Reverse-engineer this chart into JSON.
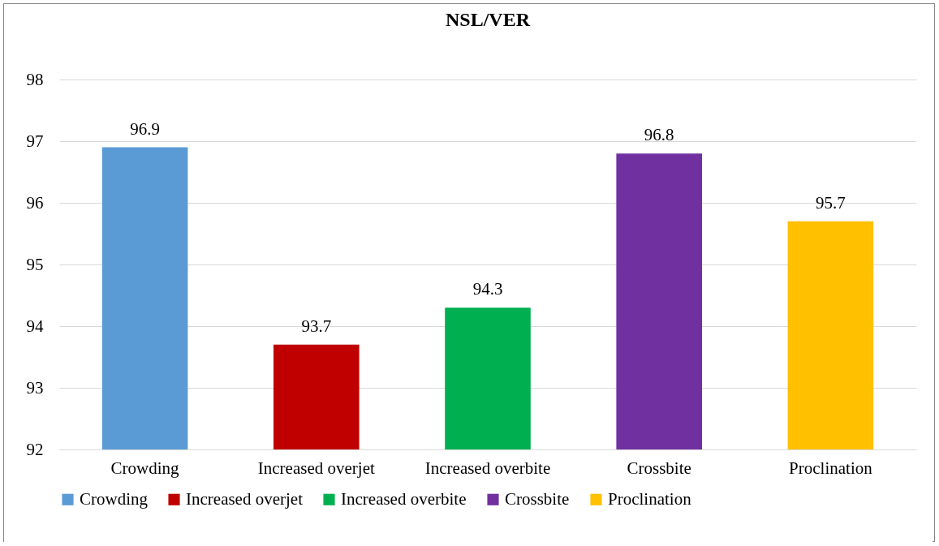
{
  "chart_data": {
    "type": "bar",
    "title": "NSL/VER",
    "categories": [
      "Crowding",
      "Increased overjet",
      "Increased overbite",
      "Crossbite",
      "Proclination"
    ],
    "series": [
      {
        "name": "Crowding",
        "color": "#5b9bd5",
        "values": [
          96.9,
          null,
          null,
          null,
          null
        ]
      },
      {
        "name": "Increased overjet",
        "color": "#c00000",
        "values": [
          null,
          93.7,
          null,
          null,
          null
        ]
      },
      {
        "name": "Increased overbite",
        "color": "#00b050",
        "values": [
          null,
          null,
          94.3,
          null,
          null
        ]
      },
      {
        "name": "Crossbite",
        "color": "#7030a0",
        "values": [
          null,
          null,
          null,
          96.8,
          null
        ]
      },
      {
        "name": "Proclination",
        "color": "#ffc000",
        "values": [
          null,
          null,
          null,
          null,
          95.7
        ]
      }
    ],
    "ylim": [
      92,
      98
    ],
    "yticks": [
      92,
      93,
      94,
      95,
      96,
      97,
      98
    ],
    "grid": "y",
    "data_labels": true,
    "legend": "bottom"
  }
}
